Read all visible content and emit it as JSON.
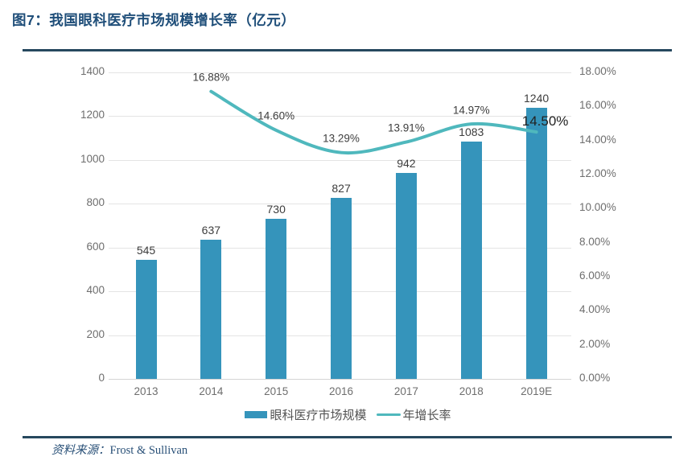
{
  "figure": {
    "title": "图7：我国眼科医疗市场规模增长率（亿元）",
    "source_label": "资料来源：",
    "source_value": "Frost & Sullivan"
  },
  "chart_data": {
    "type": "bar+line",
    "categories": [
      "2013",
      "2014",
      "2015",
      "2016",
      "2017",
      "2018",
      "2019E"
    ],
    "series": [
      {
        "name": "眼科医疗市场规模",
        "type": "bar",
        "axis": "left",
        "values": [
          545,
          637,
          730,
          827,
          942,
          1083,
          1240
        ],
        "color": "#3594BB"
      },
      {
        "name": "年增长率",
        "type": "line",
        "axis": "right",
        "values": [
          null,
          16.88,
          14.6,
          13.29,
          13.91,
          14.97,
          14.5
        ],
        "labels": [
          null,
          "16.88%",
          "14.60%",
          "13.29%",
          "13.91%",
          "14.97%",
          "14.50%"
        ],
        "color": "#4FB8BD"
      }
    ],
    "left_axis": {
      "min": 0,
      "max": 1400,
      "step": 200,
      "ticks": [
        "1400",
        "1200",
        "1000",
        "800",
        "600",
        "400",
        "200",
        "0"
      ]
    },
    "right_axis": {
      "min": 0,
      "max": 18,
      "step": 2,
      "ticks": [
        "18.00%",
        "16.00%",
        "14.00%",
        "12.00%",
        "10.00%",
        "8.00%",
        "6.00%",
        "4.00%",
        "2.00%",
        "0.00%"
      ]
    },
    "legend": [
      "眼科医疗市场规模",
      "年增长率"
    ],
    "highlight_index": 6,
    "grid": "horizontal",
    "legend_position": "bottom"
  }
}
